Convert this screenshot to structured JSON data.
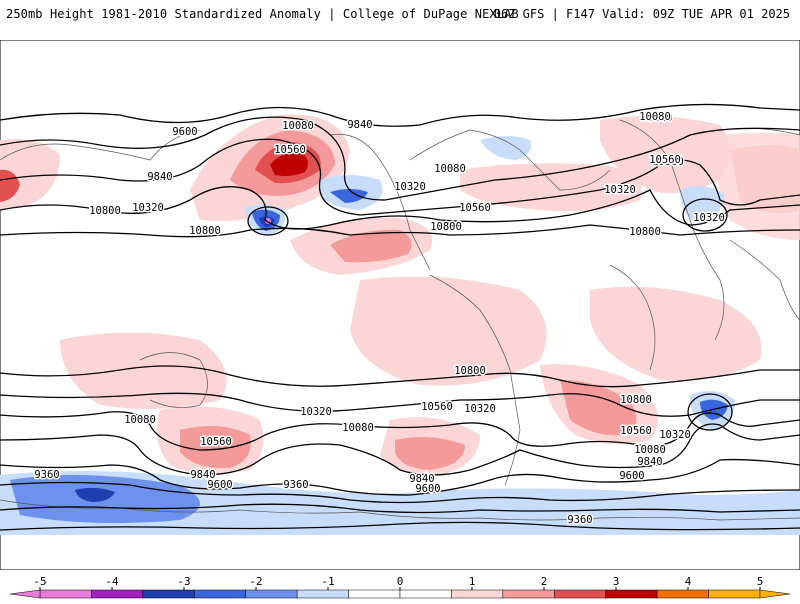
{
  "header": {
    "title": "250mb Height 1981-2010 Standardized Anomaly | College of DuPage NEXLAB",
    "run_info": "06Z GFS | F147 Valid: 09Z TUE APR 01 2025"
  },
  "map": {
    "contour_labels": [
      {
        "text": "9600"
      },
      {
        "text": "10080"
      },
      {
        "text": "9840"
      },
      {
        "text": "10560"
      },
      {
        "text": "9840"
      },
      {
        "text": "10320"
      },
      {
        "text": "10560"
      },
      {
        "text": "10800"
      },
      {
        "text": "10320"
      },
      {
        "text": "10080"
      },
      {
        "text": "10560"
      },
      {
        "text": "10800"
      },
      {
        "text": "9840"
      },
      {
        "text": "10080"
      },
      {
        "text": "10560"
      },
      {
        "text": "10320"
      },
      {
        "text": "10800"
      },
      {
        "text": "10320"
      },
      {
        "text": "10800"
      },
      {
        "text": "10800"
      },
      {
        "text": "10080"
      },
      {
        "text": "10320"
      },
      {
        "text": "10080"
      },
      {
        "text": "10560"
      },
      {
        "text": "10560"
      },
      {
        "text": "10320"
      },
      {
        "text": "10800"
      },
      {
        "text": "10560"
      },
      {
        "text": "10320"
      },
      {
        "text": "10080"
      },
      {
        "text": "9840"
      },
      {
        "text": "9600"
      },
      {
        "text": "9840"
      },
      {
        "text": "9600"
      },
      {
        "text": "9360"
      },
      {
        "text": "9840"
      },
      {
        "text": "9600"
      },
      {
        "text": "9360"
      },
      {
        "text": "9600"
      },
      {
        "text": "9360"
      }
    ]
  },
  "colorbar": {
    "tick_labels": [
      "-5",
      "-4",
      "-3",
      "-2",
      "-1",
      "0",
      "1",
      "2",
      "3",
      "4",
      "5"
    ],
    "colors": [
      "#e87ad9",
      "#a020c0",
      "#1e3fb0",
      "#3a66dd",
      "#6c92ee",
      "#c8ddfa",
      "#ffffff",
      "#ffffff",
      "#fcd6d6",
      "#f59a9a",
      "#e05050",
      "#c00000",
      "#f07000",
      "#ffb000"
    ]
  }
}
